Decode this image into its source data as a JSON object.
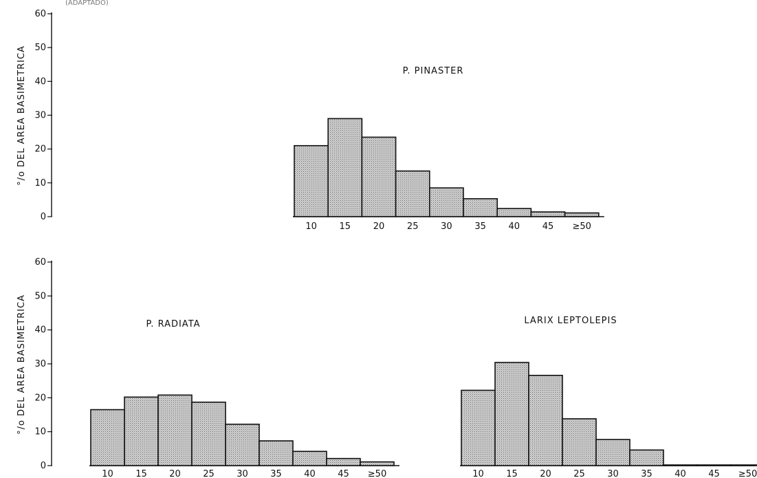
{
  "header": {
    "text": "(ADAPTADO)"
  },
  "chart_data": [
    {
      "type": "bar",
      "title": "P.  PINASTER",
      "ylabel": "°/o DEL AREA BASIMETRICA",
      "xlabel": "",
      "ylim": [
        0,
        60
      ],
      "yticks": [
        "0",
        "10",
        "20",
        "30",
        "40",
        "50",
        "60"
      ],
      "categories": [
        "10",
        "15",
        "20",
        "25",
        "30",
        "35",
        "40",
        "45",
        "≥50"
      ],
      "values": [
        21,
        29,
        23.5,
        13.5,
        8.5,
        5.3,
        2.4,
        1.4,
        1.1
      ],
      "fill": "#c9c9c9"
    },
    {
      "type": "bar",
      "title": "P.  RADIATA",
      "ylabel": "°/o DEL AREA BASIMETRICA",
      "xlabel": "",
      "ylim": [
        0,
        60
      ],
      "yticks": [
        "0",
        "10",
        "20",
        "30",
        "40",
        "50",
        "60"
      ],
      "categories": [
        "10",
        "15",
        "20",
        "25",
        "30",
        "35",
        "40",
        "45",
        "≥50"
      ],
      "values": [
        16.5,
        20.2,
        20.8,
        18.7,
        12.2,
        7.3,
        4.2,
        2.1,
        1.1
      ],
      "fill": "#c9c9c9"
    },
    {
      "type": "bar",
      "title": "LARIX  LEPTOLEPIS",
      "ylabel": "",
      "xlabel": "",
      "ylim": [
        0,
        60
      ],
      "yticks": [],
      "categories": [
        "10",
        "15",
        "20",
        "25",
        "30",
        "35",
        "40",
        "45",
        "≥50"
      ],
      "values": [
        22.2,
        30.4,
        26.6,
        13.8,
        7.7,
        4.6,
        0.2,
        0.2,
        0.2
      ],
      "fill": "#c9c9c9"
    }
  ]
}
